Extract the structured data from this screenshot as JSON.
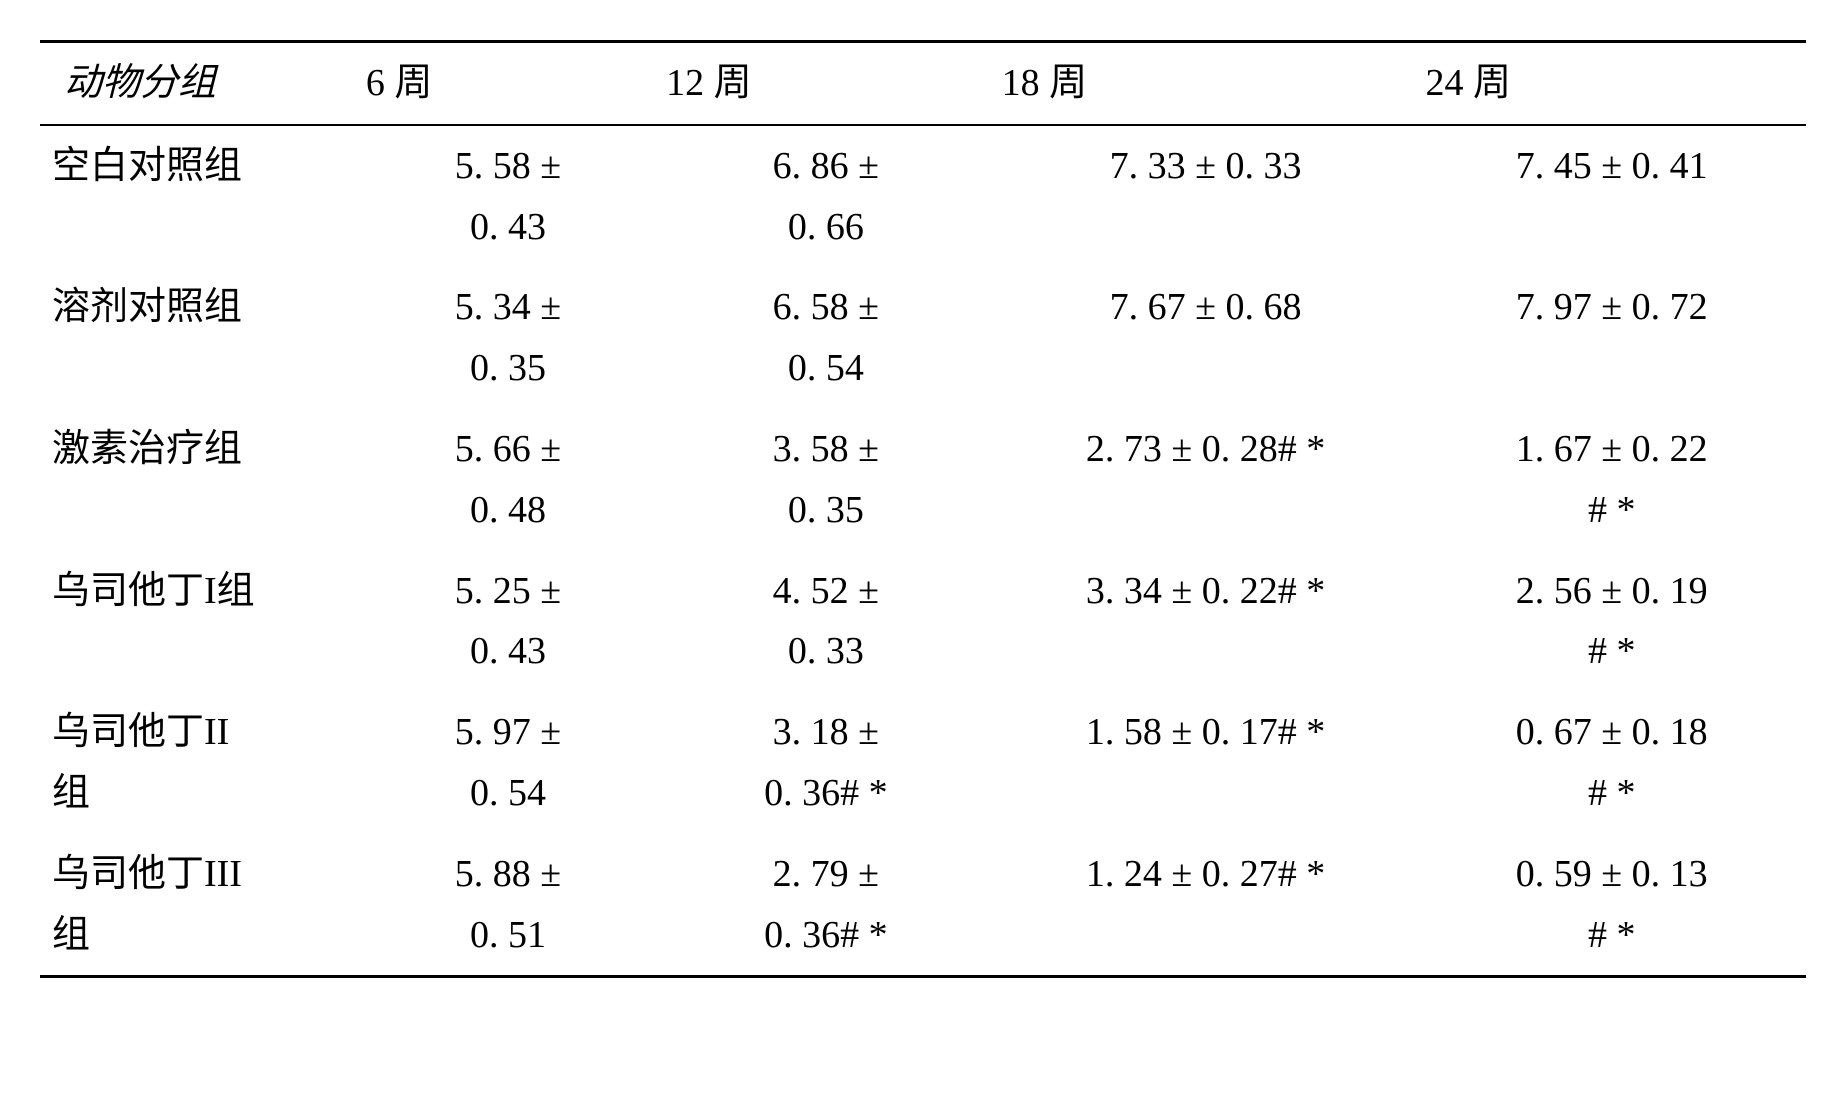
{
  "table": {
    "headers": [
      "动物分组",
      "6 周",
      "12 周",
      "18 周",
      "24 周"
    ],
    "rows": [
      {
        "group": "空白对照组",
        "w6": {
          "line1": "5. 58 ±",
          "line2": "0. 43"
        },
        "w12": {
          "line1": "6. 86 ±",
          "line2": "0. 66"
        },
        "w18": {
          "line1": "7. 33 ± 0. 33",
          "line2": ""
        },
        "w24": {
          "line1": "7. 45 ± 0. 41",
          "line2": ""
        }
      },
      {
        "group": "溶剂对照组",
        "w6": {
          "line1": "5. 34 ±",
          "line2": "0. 35"
        },
        "w12": {
          "line1": "6. 58 ±",
          "line2": "0. 54"
        },
        "w18": {
          "line1": "7. 67 ± 0. 68",
          "line2": ""
        },
        "w24": {
          "line1": "7. 97 ± 0. 72",
          "line2": ""
        }
      },
      {
        "group": "激素治疗组",
        "w6": {
          "line1": "5. 66 ±",
          "line2": "0. 48"
        },
        "w12": {
          "line1": "3. 58 ±",
          "line2": "0. 35"
        },
        "w18": {
          "line1": "2. 73 ± 0. 28# *",
          "line2": ""
        },
        "w24": {
          "line1": "1. 67 ± 0. 22",
          "line2": "# *"
        }
      },
      {
        "group": "乌司他丁I组",
        "w6": {
          "line1": "5. 25 ±",
          "line2": "0. 43"
        },
        "w12": {
          "line1": "4. 52 ±",
          "line2": "0. 33"
        },
        "w18": {
          "line1": "3. 34 ± 0. 22# *",
          "line2": ""
        },
        "w24": {
          "line1": "2. 56 ± 0. 19",
          "line2": "# *"
        }
      },
      {
        "group": "乌司他丁II\n组",
        "w6": {
          "line1": "5. 97 ±",
          "line2": "0. 54"
        },
        "w12": {
          "line1": "3. 18 ±",
          "line2": "0. 36# *"
        },
        "w18": {
          "line1": "1. 58 ± 0. 17# *",
          "line2": ""
        },
        "w24": {
          "line1": "0. 67 ± 0. 18",
          "line2": "# *"
        }
      },
      {
        "group": "乌司他丁III\n组",
        "w6": {
          "line1": "5. 88 ±",
          "line2": "0. 51"
        },
        "w12": {
          "line1": "2. 79 ±",
          "line2": "0. 36# *"
        },
        "w18": {
          "line1": "1. 24 ± 0. 27# *",
          "line2": ""
        },
        "w24": {
          "line1": "0. 59 ± 0. 13",
          "line2": "# *"
        }
      }
    ]
  },
  "style": {
    "font_size_pt": 28,
    "font_family": "serif",
    "text_color": "#000000",
    "background_color": "#ffffff",
    "border_color": "#000000",
    "col_widths_pct": [
      18,
      17,
      19,
      24,
      22
    ],
    "header_first_italic": true,
    "row_count": 6,
    "col_count": 5
  }
}
